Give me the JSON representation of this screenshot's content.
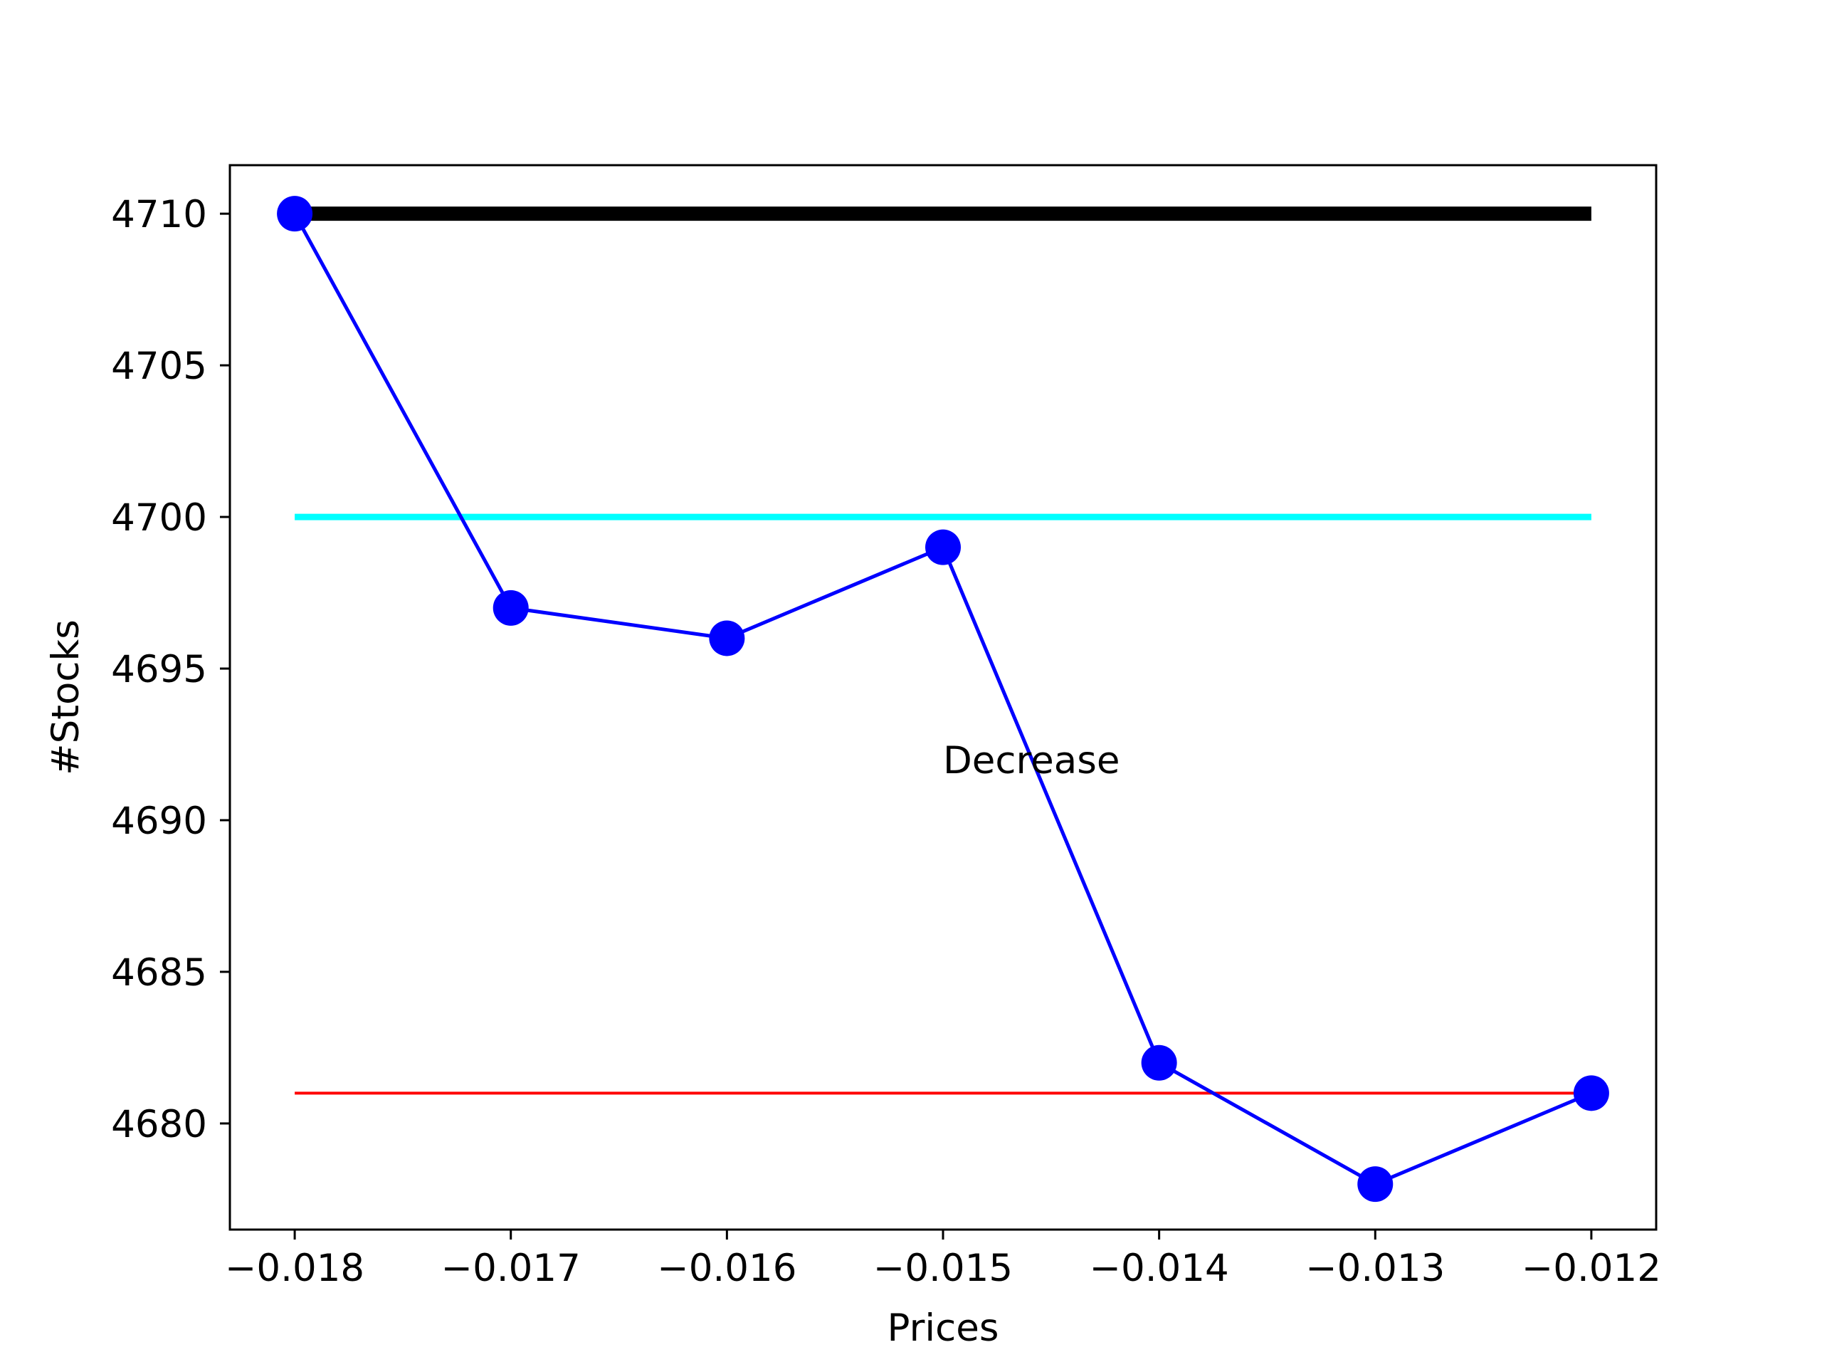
{
  "chart_data": {
    "type": "line",
    "title": "",
    "xlabel": "Prices",
    "ylabel": "#Stocks",
    "xlim": [
      -0.0183,
      -0.0117
    ],
    "ylim": [
      4676.5,
      4711.6
    ],
    "grid": false,
    "x_ticks": [
      -0.018,
      -0.017,
      -0.016,
      -0.015,
      -0.014,
      -0.013,
      -0.012
    ],
    "x_tick_labels": [
      "−0.018",
      "−0.017",
      "−0.016",
      "−0.015",
      "−0.014",
      "−0.013",
      "−0.012"
    ],
    "y_ticks": [
      4680,
      4685,
      4690,
      4695,
      4700,
      4705,
      4710
    ],
    "y_tick_labels": [
      "4680",
      "4685",
      "4690",
      "4695",
      "4700",
      "4705",
      "4710"
    ],
    "series": [
      {
        "color": "#0000ff",
        "marker": "circle",
        "x": [
          -0.018,
          -0.017,
          -0.016,
          -0.015,
          -0.014,
          -0.013,
          -0.012
        ],
        "y": [
          4710,
          4697,
          4696,
          4699,
          4682,
          4678,
          4681
        ]
      }
    ],
    "reference_lines": [
      {
        "y": 4710,
        "x_range": [
          -0.018,
          -0.012
        ],
        "color": "#000000",
        "style": "thick"
      },
      {
        "y": 4700,
        "x_range": [
          -0.018,
          -0.012
        ],
        "color": "#00ffff",
        "style": "medium"
      },
      {
        "y": 4681,
        "x_range": [
          -0.018,
          -0.012
        ],
        "color": "#ff0000",
        "style": "thin"
      }
    ],
    "annotations": [
      {
        "text": "Decrease",
        "x": -0.015,
        "y": 4692
      }
    ]
  }
}
